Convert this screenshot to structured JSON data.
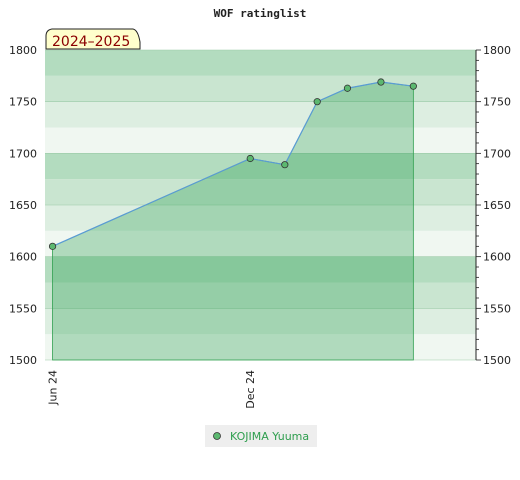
{
  "chart_data": {
    "type": "area",
    "title": "WOF ratinglist",
    "season_label": "2024–2025",
    "ylim": [
      1500,
      1800
    ],
    "y_ticks": [
      1500,
      1550,
      1600,
      1650,
      1700,
      1750,
      1800
    ],
    "y_tick_labels": [
      "1500",
      "1550",
      "1600",
      "1650",
      "1700",
      "1750",
      "1800"
    ],
    "x_range": [
      "2024-05-25",
      "2025-06-28"
    ],
    "x_ticks": [
      {
        "date": "2024-06-01",
        "label": "Jun 24"
      },
      {
        "date": "2024-12-01",
        "label": "Dec 24"
      }
    ],
    "series": [
      {
        "name": "KOJIMA Yuuma",
        "color": "#2e9e4e",
        "marker_color": "#5cb870",
        "line_color": "#5a9bd5",
        "points": [
          {
            "x": "2024-06-01",
            "y": 1610
          },
          {
            "x": "2024-12-01",
            "y": 1695
          },
          {
            "x": "2025-01-02",
            "y": 1689
          },
          {
            "x": "2025-02-01",
            "y": 1750
          },
          {
            "x": "2025-03-01",
            "y": 1763
          },
          {
            "x": "2025-04-01",
            "y": 1769
          },
          {
            "x": "2025-05-01",
            "y": 1765
          }
        ]
      }
    ],
    "grid": true,
    "legend_position": "bottom-center"
  }
}
